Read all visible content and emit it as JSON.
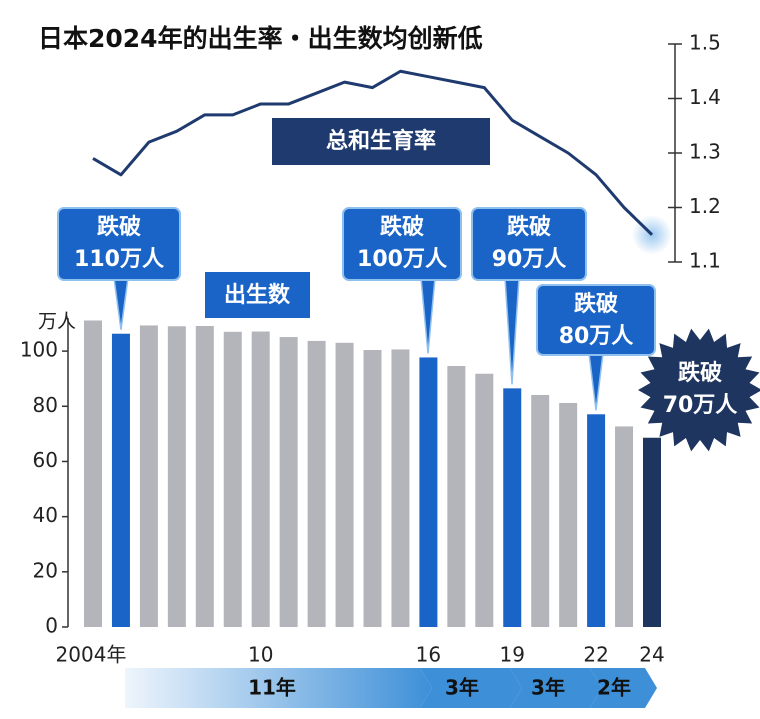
{
  "chart_data": {
    "type": "bar",
    "title": "日本2024年的出生率・出生数均创新低",
    "categories": [
      "2004年",
      null,
      null,
      null,
      null,
      null,
      "10",
      null,
      null,
      null,
      null,
      null,
      "16",
      null,
      null,
      "19",
      null,
      null,
      "22",
      null,
      "24"
    ],
    "series": [
      {
        "name": "出生数",
        "type": "bar",
        "color": "#b4b5ba",
        "colors": [
          "#b4b5ba",
          "#1a64c8",
          "#b4b5ba",
          "#b4b5ba",
          "#b4b5ba",
          "#b4b5ba",
          "#b4b5ba",
          "#b4b5ba",
          "#b4b5ba",
          "#b4b5ba",
          "#b4b5ba",
          "#b4b5ba",
          "#1a64c8",
          "#b4b5ba",
          "#b4b5ba",
          "#1a64c8",
          "#b4b5ba",
          "#b4b5ba",
          "#1a64c8",
          "#b4b5ba",
          "#1e3560"
        ],
        "values": [
          111.1,
          106.3,
          109.3,
          109.0,
          109.1,
          107.0,
          107.1,
          105.1,
          103.7,
          103.0,
          100.4,
          100.6,
          97.7,
          94.6,
          91.8,
          86.5,
          84.1,
          81.2,
          77.1,
          72.7,
          68.6
        ]
      },
      {
        "name": "总和生育率",
        "type": "line",
        "axis": "y2",
        "color": "#1f3a6e",
        "values": [
          1.29,
          1.26,
          1.32,
          1.34,
          1.37,
          1.37,
          1.39,
          1.39,
          1.41,
          1.43,
          1.42,
          1.45,
          1.44,
          1.43,
          1.42,
          1.36,
          1.33,
          1.3,
          1.26,
          1.2,
          1.15
        ]
      }
    ],
    "y_label": "万人",
    "ylim": [
      0,
      112
    ],
    "yticks": [
      0,
      20,
      40,
      60,
      80,
      100
    ],
    "y2lim": [
      1.1,
      1.5
    ],
    "y2ticks": [
      1.1,
      1.2,
      1.3,
      1.4,
      1.5
    ],
    "annotations": [
      [
        "跌破",
        "110万人"
      ],
      [
        "跌破",
        "100万人"
      ],
      [
        "跌破",
        "90万人"
      ],
      [
        "跌破",
        "80万人"
      ],
      [
        "跌破",
        "70万人"
      ]
    ],
    "periods": [
      "11年",
      "3年",
      "3年",
      "2年"
    ]
  }
}
